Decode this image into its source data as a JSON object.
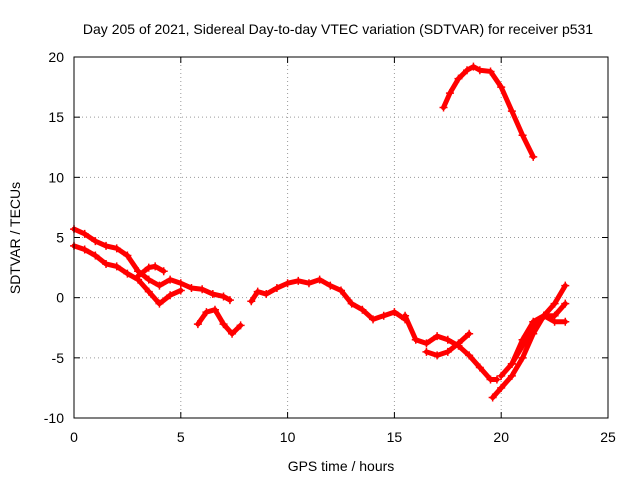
{
  "chart_data": {
    "type": "scatter",
    "title": "Day 205 of 2021, Sidereal Day-to-day VTEC variation (SDTVAR) for receiver p531",
    "xlabel": "GPS time / hours",
    "ylabel": "SDTVAR / TECUs",
    "xlim": [
      0,
      25
    ],
    "ylim": [
      -10,
      20
    ],
    "xticks": [
      0,
      5,
      10,
      15,
      20,
      25
    ],
    "yticks": [
      -10,
      -5,
      0,
      5,
      10,
      15,
      20
    ],
    "grid": true,
    "marker_color": "#ff0000",
    "series": [
      {
        "name": "track-1",
        "x": [
          0,
          0.5,
          1.0,
          1.5,
          2.0,
          2.5,
          3.0,
          3.5,
          4.0,
          4.5,
          5.0,
          5.5,
          6.0,
          6.5,
          7.0,
          7.3
        ],
        "y": [
          5.7,
          5.3,
          4.7,
          4.3,
          4.1,
          3.5,
          2.2,
          1.5,
          1.0,
          1.5,
          1.2,
          0.8,
          0.7,
          0.3,
          0.1,
          -0.2
        ]
      },
      {
        "name": "track-2",
        "x": [
          0,
          0.5,
          1.0,
          1.5,
          2.0,
          2.5,
          3.0,
          3.5,
          4.0,
          4.5,
          5.0
        ],
        "y": [
          4.3,
          4.0,
          3.5,
          2.8,
          2.6,
          2.0,
          1.5,
          0.5,
          -0.5,
          0.2,
          0.6
        ]
      },
      {
        "name": "track-3",
        "x": [
          3.0,
          3.5,
          3.8,
          4.2
        ],
        "y": [
          1.8,
          2.5,
          2.6,
          2.2
        ]
      },
      {
        "name": "track-4",
        "x": [
          5.8,
          6.2,
          6.6,
          7.0,
          7.4,
          7.8
        ],
        "y": [
          -2.2,
          -1.2,
          -1.0,
          -2.2,
          -3.0,
          -2.3
        ]
      },
      {
        "name": "track-5",
        "x": [
          8.3,
          8.6,
          9.0,
          9.5,
          10.0,
          10.5,
          11.0,
          11.5,
          12.0,
          12.5,
          13.0,
          13.5,
          14.0,
          14.5,
          15.0,
          15.5
        ],
        "y": [
          -0.3,
          0.5,
          0.3,
          0.8,
          1.2,
          1.4,
          1.2,
          1.5,
          1.0,
          0.6,
          -0.5,
          -1.0,
          -1.8,
          -1.5,
          -1.2,
          -1.8
        ]
      },
      {
        "name": "track-6",
        "x": [
          15.5,
          16.0,
          16.5,
          17.0,
          17.5,
          18.0,
          18.5,
          19.0,
          19.5,
          19.8
        ],
        "y": [
          -1.5,
          -3.5,
          -3.8,
          -3.2,
          -3.5,
          -4.0,
          -4.8,
          -5.8,
          -6.8,
          -6.8
        ]
      },
      {
        "name": "track-7",
        "x": [
          16.5,
          17.0,
          17.5,
          18.0,
          18.5
        ],
        "y": [
          -4.5,
          -4.8,
          -4.5,
          -3.8,
          -3.0
        ]
      },
      {
        "name": "track-8",
        "x": [
          19.6,
          20.0,
          20.5,
          21.0,
          21.5,
          22.0,
          22.5,
          23.0
        ],
        "y": [
          -8.3,
          -7.5,
          -6.5,
          -5.0,
          -3.0,
          -1.5,
          -0.5,
          1.0
        ]
      },
      {
        "name": "track-9",
        "x": [
          20.0,
          20.5,
          21.0,
          21.5,
          22.0,
          22.5,
          23.0
        ],
        "y": [
          -6.5,
          -5.5,
          -4.0,
          -2.5,
          -1.5,
          -1.5,
          -0.5
        ]
      },
      {
        "name": "track-10",
        "x": [
          20.5,
          21.0,
          21.5,
          22.0,
          22.5,
          23.0
        ],
        "y": [
          -5.5,
          -3.5,
          -2.0,
          -1.5,
          -2.0,
          -2.0
        ]
      },
      {
        "name": "track-11",
        "x": [
          17.3,
          17.6,
          18.0,
          18.4,
          18.7,
          19.0,
          19.5,
          20.0,
          20.5,
          21.0,
          21.5
        ],
        "y": [
          15.8,
          17.0,
          18.2,
          18.9,
          19.2,
          18.9,
          18.8,
          17.5,
          15.5,
          13.5,
          11.7
        ]
      }
    ]
  }
}
